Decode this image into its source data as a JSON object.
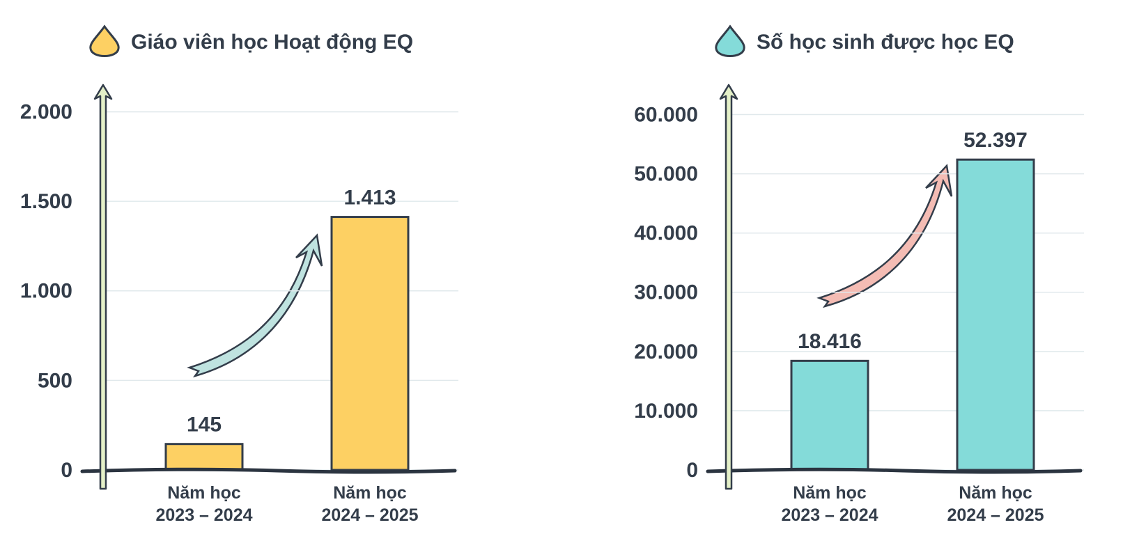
{
  "chart_data": [
    {
      "type": "bar",
      "title": "Giáo viên học Hoạt động EQ",
      "categories": [
        "Năm học\n2023 – 2024",
        "Năm học\n2024 – 2025"
      ],
      "values": [
        145,
        1413
      ],
      "value_labels": [
        "145",
        "1.413"
      ],
      "color": "#fdd063",
      "ylim": [
        0,
        2150
      ],
      "yticks": [
        0,
        500,
        {
          "value": 1000,
          "label": "1.000"
        },
        {
          "value": 1500,
          "label": "1.500"
        },
        {
          "value": 2000,
          "label": "2.000"
        }
      ],
      "grid": true
    },
    {
      "type": "bar",
      "title": "Số học sinh được học EQ",
      "categories": [
        "Năm học\n2023 – 2024",
        "Năm học\n2024 – 2025"
      ],
      "values": [
        18416,
        52397
      ],
      "value_labels": [
        "18.416",
        "52.397"
      ],
      "color": "#84dbd9",
      "ylim": [
        0,
        65000
      ],
      "yticks": [
        0,
        {
          "value": 10000,
          "label": "10.000"
        },
        {
          "value": 20000,
          "label": "20.000"
        },
        {
          "value": 30000,
          "label": "30.000"
        },
        {
          "value": 40000,
          "label": "40.000"
        },
        {
          "value": 50000,
          "label": "50.000"
        },
        {
          "value": 60000,
          "label": "60.000"
        }
      ],
      "grid": true
    }
  ]
}
